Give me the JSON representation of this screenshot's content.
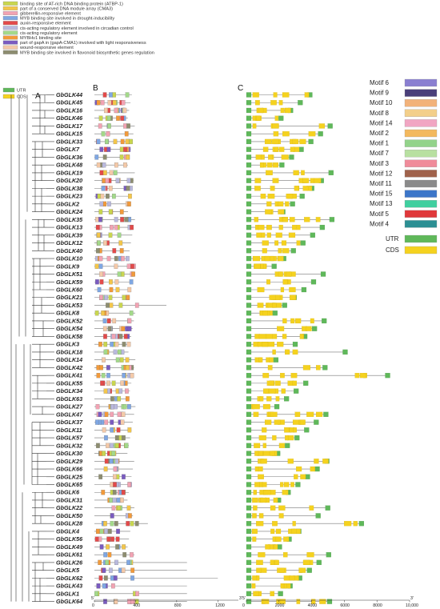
{
  "panels": {
    "a": "A",
    "b": "B",
    "c": "C"
  },
  "cre_legend": [
    {
      "label": "binding site of AT-rich DNA binding protein (ATBP-1)",
      "color": "#c9d64f"
    },
    {
      "label": "part of a conserved DNA module array (CMA3)",
      "color": "#f3c64a"
    },
    {
      "label": "gibberellin-responsive element",
      "color": "#f2a3b3"
    },
    {
      "label": "MYB binding site involved in drought-inducibility",
      "color": "#7fa7e3"
    },
    {
      "label": "auxin-responsive element",
      "color": "#e34a4a"
    },
    {
      "label": "cis-acting regulatory element involved in circadian control",
      "color": "#b9b9dd"
    },
    {
      "label": "cis-acting regulatory element",
      "color": "#a3d98a"
    },
    {
      "label": "MYBHv1 binding site",
      "color": "#f29a3a"
    },
    {
      "label": "part of gapA in (gapA-CMA1) involved with light responsiveness",
      "color": "#7a5bc0"
    },
    {
      "label": "wound-responsive element",
      "color": "#f4c9a8"
    },
    {
      "label": "MYB binding site involved in flavonoid biosynthetic genes regulation",
      "color": "#8d8d70"
    }
  ],
  "gene_legend": [
    {
      "label": "UTR",
      "color": "#5fb85a"
    },
    {
      "label": "CDS",
      "color": "#f5d21f"
    }
  ],
  "motif_legend": [
    {
      "label": "Motif 6",
      "color": "#8a7fd1"
    },
    {
      "label": "Motif 9",
      "color": "#4a3f7a"
    },
    {
      "label": "Motif 10",
      "color": "#f2b27a"
    },
    {
      "label": "Motif 8",
      "color": "#f3cf8a"
    },
    {
      "label": "Motif 14",
      "color": "#f1a6c3"
    },
    {
      "label": "Motif 2",
      "color": "#f3b95e"
    },
    {
      "label": "Motif 1",
      "color": "#93d38a"
    },
    {
      "label": "Motif 7",
      "color": "#b8e0a1"
    },
    {
      "label": "Motif 3",
      "color": "#f08b9a"
    },
    {
      "label": "Motif 12",
      "color": "#a0624b"
    },
    {
      "label": "Motif 11",
      "color": "#8a8a8a"
    },
    {
      "label": "Motif 15",
      "color": "#3c76c9"
    },
    {
      "label": "Motif 13",
      "color": "#3fcf9f"
    },
    {
      "label": "Motif 5",
      "color": "#e0383a"
    },
    {
      "label": "Motif 4",
      "color": "#2c8f93"
    }
  ],
  "motif_gene_legend": [
    {
      "label": "UTR",
      "color": "#5fb85a"
    },
    {
      "label": "CDS",
      "color": "#f5d21f"
    }
  ],
  "genes": [
    "GbGLK44",
    "GbGLK45",
    "GbGLK16",
    "GbGLK46",
    "GbGLK17",
    "GbGLK15",
    "GbGLK33",
    "GbGLK7",
    "GbGLK36",
    "GbGLK48",
    "GbGLK19",
    "GbGLK20",
    "GbGLK38",
    "GbGLK23",
    "GbGLK2",
    "GbGLK24",
    "GbGLK35",
    "GbGLK13",
    "GbGLK39",
    "GbGLK12",
    "GbGLK40",
    "GbGLK10",
    "GbGLK9",
    "GbGLK51",
    "GbGLK59",
    "GbGLK60",
    "GbGLK21",
    "GbGLK53",
    "GbGLK8",
    "GbGLK52",
    "GbGLK54",
    "GbGLK58",
    "GbGLK3",
    "GbGLK18",
    "GbGLK14",
    "GbGLK42",
    "GbGLK41",
    "GbGLK55",
    "GbGLK34",
    "GbGLK63",
    "GbGLK27",
    "GbGLK47",
    "GbGLK37",
    "GbGLK11",
    "GbGLK57",
    "GbGLK32",
    "GbGLK30",
    "GbGLK29",
    "GbGLK66",
    "GbGLK25",
    "GbGLK65",
    "GbGLK6",
    "GbGLK31",
    "GbGLK22",
    "GbGLK50",
    "GbGLK28",
    "GbGLK4",
    "GbGLK56",
    "GbGLK49",
    "GbGLK61",
    "GbGLK26",
    "GbGLK5",
    "GbGLK62",
    "GbGLK43",
    "GbGLK1",
    "GbGLK64"
  ],
  "promoter_axis": {
    "start": "5'",
    "end": "3'",
    "ticks": [
      "0",
      "400",
      "800",
      "1200"
    ]
  },
  "gene_axis": {
    "start": "5'",
    "end": "3'",
    "ticks": [
      "0",
      "2000",
      "4000",
      "6000",
      "8000",
      "10,000"
    ]
  }
}
